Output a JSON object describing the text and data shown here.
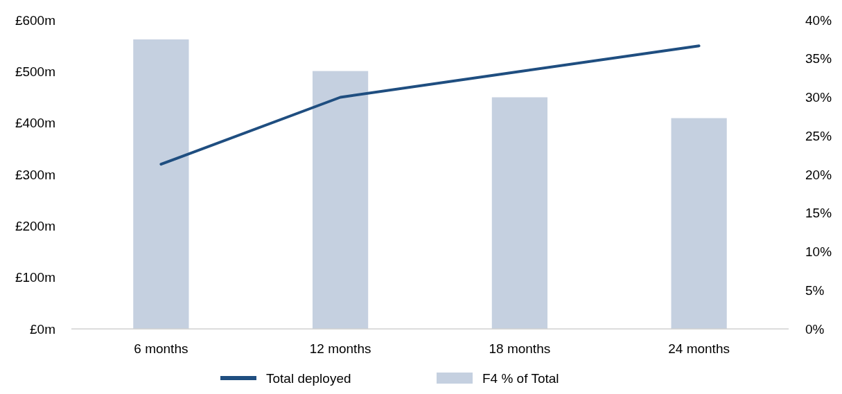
{
  "chart_data": {
    "type": "bar",
    "categories": [
      "6 months",
      "12 months",
      "18 months",
      "24 months"
    ],
    "series": [
      {
        "name": "Total deployed",
        "type": "line",
        "color": "#1f4e80",
        "values": [
          320,
          450,
          500,
          550
        ]
      },
      {
        "name": "F4 % of Total",
        "axis": "y2",
        "color": "#c5d0e0",
        "values": [
          37.5,
          33.4,
          30.0,
          27.3
        ]
      }
    ],
    "ylim": [
      0,
      600
    ],
    "yticks": [
      {
        "value": 0,
        "label": "£0m"
      },
      {
        "value": 100,
        "label": "£100m"
      },
      {
        "value": 200,
        "label": "£200m"
      },
      {
        "value": 300,
        "label": "£300m"
      },
      {
        "value": 400,
        "label": "£400m"
      },
      {
        "value": 500,
        "label": "£500m"
      },
      {
        "value": 600,
        "label": "£600m"
      }
    ],
    "y2lim": [
      0,
      40
    ],
    "y2ticks": [
      {
        "value": 0,
        "label": "0%"
      },
      {
        "value": 5,
        "label": "5%"
      },
      {
        "value": 10,
        "label": "10%"
      },
      {
        "value": 15,
        "label": "15%"
      },
      {
        "value": 20,
        "label": "20%"
      },
      {
        "value": 25,
        "label": "25%"
      },
      {
        "value": 30,
        "label": "30%"
      },
      {
        "value": 35,
        "label": "35%"
      },
      {
        "value": 40,
        "label": "40%"
      }
    ],
    "legend": "bottom"
  }
}
